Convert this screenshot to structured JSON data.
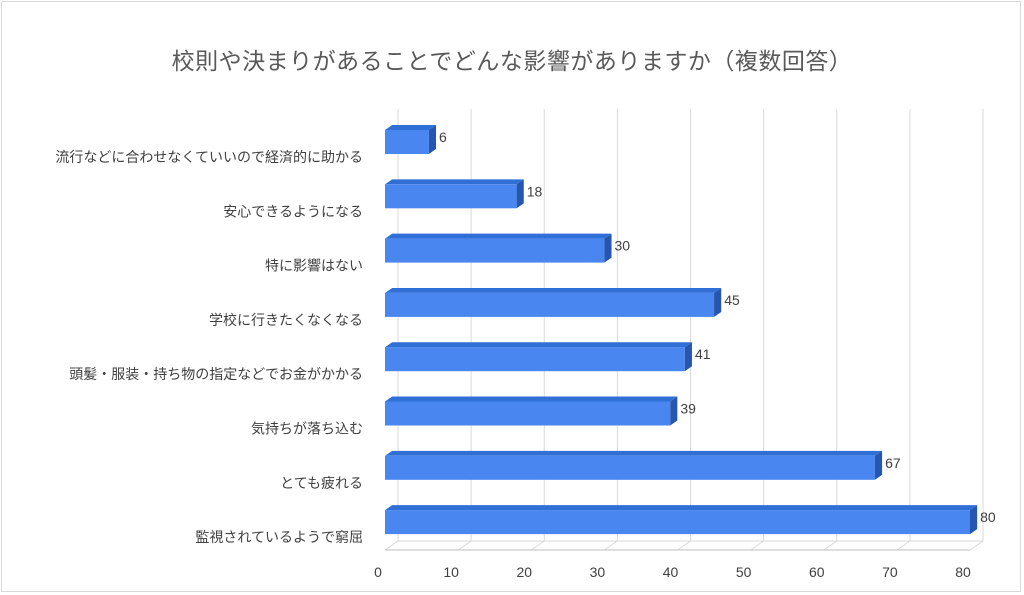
{
  "chart_data": {
    "type": "bar",
    "orientation": "horizontal",
    "title": "校則や決まりがあることでどんな影響がありますか（複数回答）",
    "categories": [
      "流行などに合わせなくていいので経済的に助かる",
      "安心できるようになる",
      "特に影響はない",
      "学校に行きたくなくなる",
      "頭髪・服装・持ち物の指定などでお金がかかる",
      "気持ちが落ち込む",
      "とても疲れる",
      "監視されているようで窮屈"
    ],
    "values": [
      6,
      18,
      30,
      45,
      41,
      39,
      67,
      80
    ],
    "xlim": [
      0,
      80
    ],
    "xticks": [
      0,
      10,
      20,
      30,
      40,
      50,
      60,
      70,
      80
    ],
    "xlabel": "",
    "ylabel": "",
    "grid": "vertical",
    "style": "3d-bar",
    "colors": {
      "bar_front": "#4a86f0",
      "bar_top": "#2f6fd6",
      "bar_side": "#2557b0",
      "grid": "#d9d9d9",
      "axis": "#bfbfbf"
    }
  }
}
